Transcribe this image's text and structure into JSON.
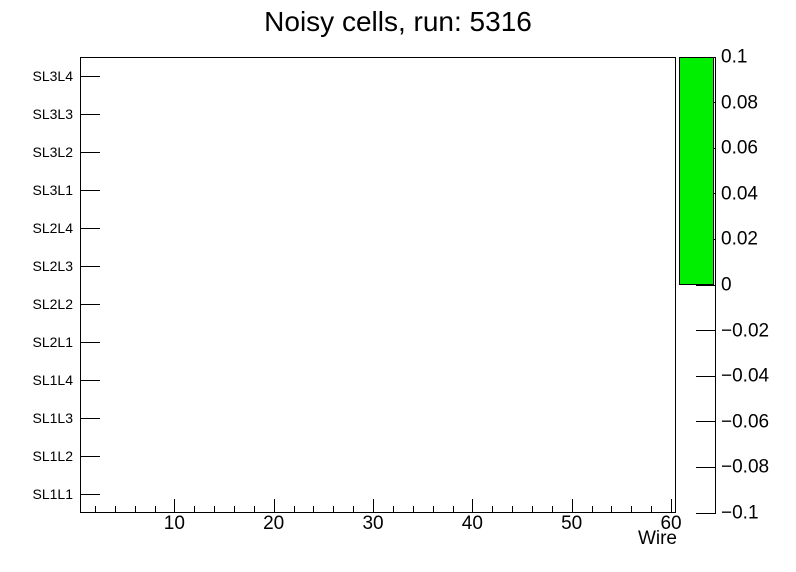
{
  "title": "Noisy cells, run: 5316",
  "colors": {
    "palette_fill": "#00EE00",
    "axis": "#000000",
    "background": "#FFFFFF"
  },
  "x_axis": {
    "label": "Wire",
    "major_ticks": [
      10,
      20,
      30,
      40,
      50,
      60
    ],
    "minor_tick_step": 2,
    "min": 0.5,
    "max": 60.5
  },
  "y_axis": {
    "labels_top_to_bottom": [
      "SL3L4",
      "SL3L3",
      "SL3L2",
      "SL3L1",
      "SL2L4",
      "SL2L3",
      "SL2L2",
      "SL2L1",
      "SL1L4",
      "SL1L3",
      "SL1L2",
      "SL1L1"
    ]
  },
  "palette_axis": {
    "tick_labels_top_to_bottom": [
      "0.1",
      "0.08",
      "0.06",
      "0.04",
      "0.02",
      "0",
      "−0.02",
      "−0.04",
      "−0.06",
      "−0.08",
      "−0.1"
    ],
    "range": [
      -0.1,
      0.1
    ],
    "filled_range": [
      0,
      0.1
    ]
  },
  "chart_data": {
    "type": "heatmap",
    "title": "Noisy cells, run: 5316",
    "xlabel": "Wire",
    "ylabel": "",
    "x_range": [
      0.5,
      60.5
    ],
    "x_tick_labels": [
      "10",
      "20",
      "30",
      "40",
      "50",
      "60"
    ],
    "y_categories": [
      "SL1L1",
      "SL1L2",
      "SL1L3",
      "SL1L4",
      "SL2L1",
      "SL2L2",
      "SL2L3",
      "SL2L4",
      "SL3L1",
      "SL3L2",
      "SL3L3",
      "SL3L4"
    ],
    "z_range": [
      -0.1,
      0.1
    ],
    "z_tick_labels": [
      "−0.1",
      "−0.08",
      "−0.06",
      "−0.04",
      "−0.02",
      "0",
      "0.02",
      "0.04",
      "0.06",
      "0.08",
      "0.1"
    ],
    "colorbar_filled_range": [
      0,
      0.1
    ],
    "values": [],
    "legend_position": "right-colorbar",
    "grid": false
  }
}
